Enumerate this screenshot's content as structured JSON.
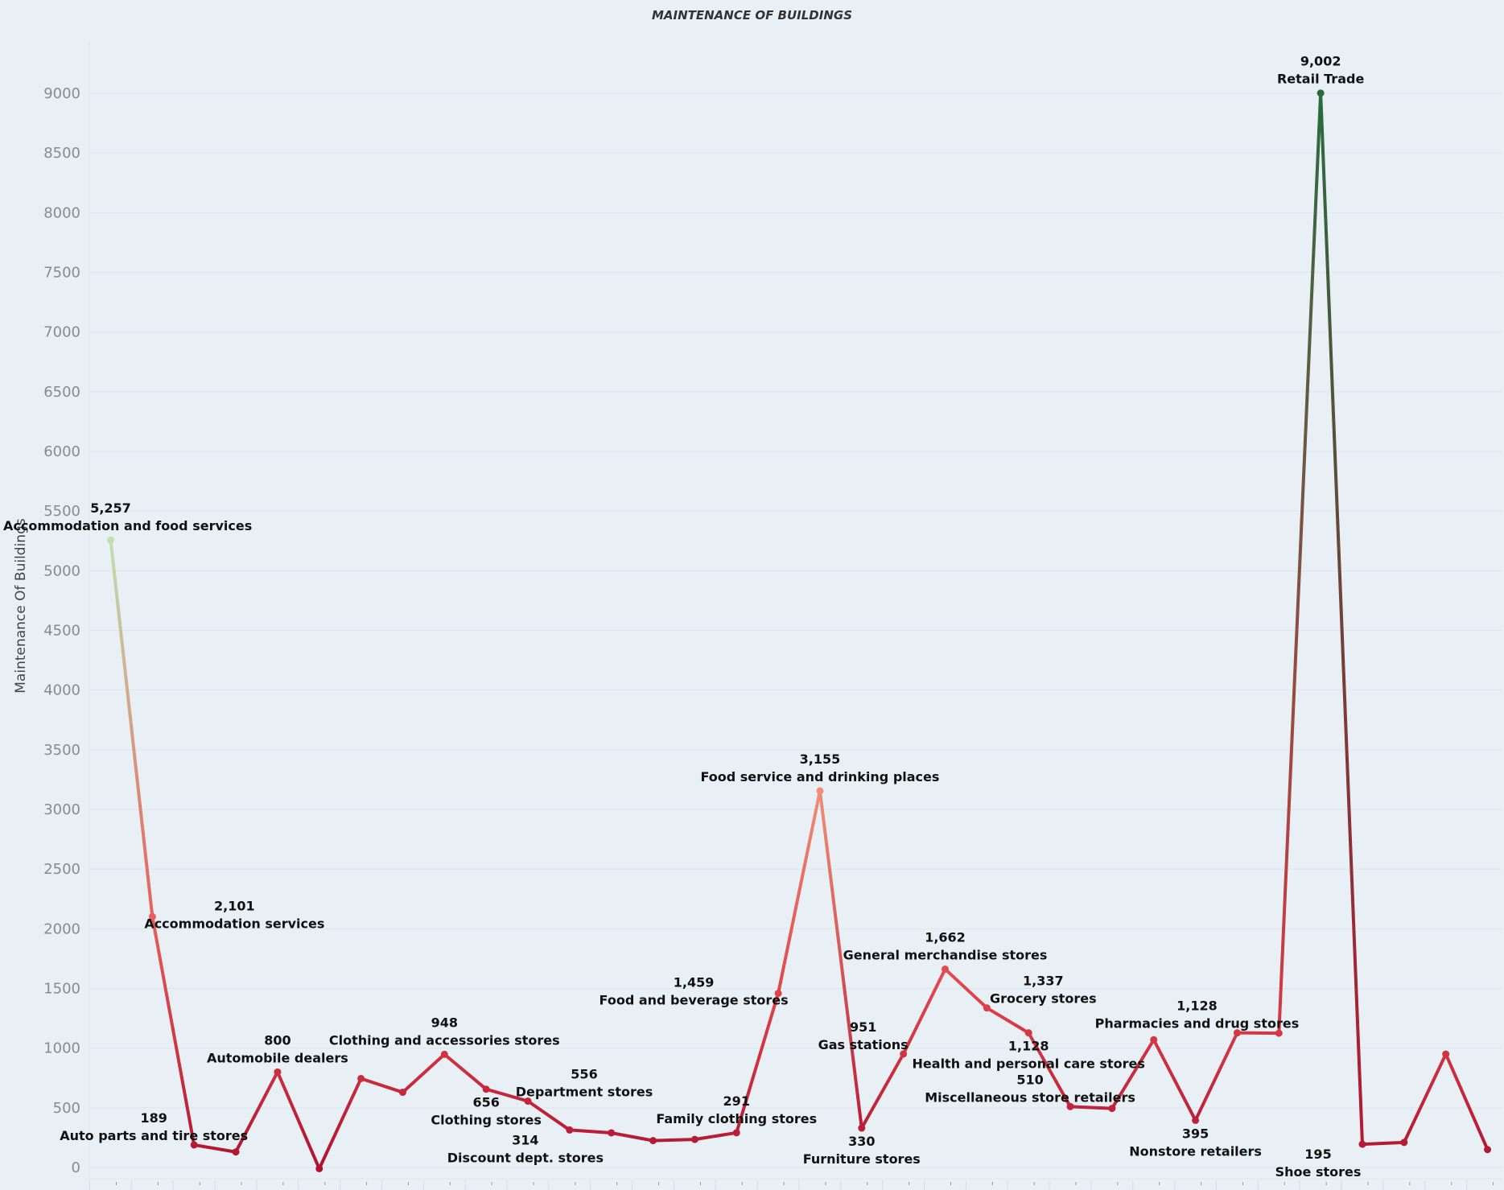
{
  "chart_data": {
    "type": "line",
    "title": "MAINTENANCE OF BUILDINGS",
    "xlabel": "",
    "ylabel": "Maintenance Of Buildings",
    "ylim": [
      0,
      9000
    ],
    "yticks": [
      0,
      500,
      1000,
      1500,
      2000,
      2500,
      3000,
      3500,
      4000,
      4500,
      5000,
      5500,
      6000,
      6500,
      7000,
      7500,
      8000,
      8500,
      9000
    ],
    "grid": true,
    "legend": "none",
    "color_scale": [
      "#b0132f",
      "#e5484e",
      "#f0907a",
      "#bfe0b0",
      "#2a6b3e"
    ],
    "points": [
      {
        "name": "Accommodation and food services",
        "value": 5257,
        "value_label": "5,257",
        "label": "above"
      },
      {
        "name": "Accommodation services",
        "value": 2101,
        "value_label": "2,101",
        "label": "right"
      },
      {
        "name": "Auto parts and tire stores",
        "value": 189,
        "value_label": "189",
        "label": "above-left"
      },
      {
        "name": "",
        "value": 130,
        "value_label": "",
        "label": "none"
      },
      {
        "name": "Automobile dealers",
        "value": 800,
        "value_label": "800",
        "label": "above"
      },
      {
        "name": "",
        "value": -10,
        "value_label": "",
        "label": "none"
      },
      {
        "name": "",
        "value": 745,
        "value_label": "",
        "label": "none"
      },
      {
        "name": "",
        "value": 630,
        "value_label": "",
        "label": "none"
      },
      {
        "name": "Clothing and accessories stores",
        "value": 948,
        "value_label": "948",
        "label": "above"
      },
      {
        "name": "Clothing stores",
        "value": 656,
        "value_label": "656",
        "label": "below"
      },
      {
        "name": "Department stores",
        "value": 556,
        "value_label": "556",
        "label": "above-right"
      },
      {
        "name": "Discount dept. stores",
        "value": 314,
        "value_label": "314",
        "label": "below-left"
      },
      {
        "name": "",
        "value": 290,
        "value_label": "",
        "label": "none"
      },
      {
        "name": "",
        "value": 225,
        "value_label": "",
        "label": "none"
      },
      {
        "name": "",
        "value": 235,
        "value_label": "",
        "label": "none"
      },
      {
        "name": "Family clothing stores",
        "value": 291,
        "value_label": "291",
        "label": "above"
      },
      {
        "name": "Food and beverage stores",
        "value": 1459,
        "value_label": "1,459",
        "label": "left"
      },
      {
        "name": "Food service and drinking places",
        "value": 3155,
        "value_label": "3,155",
        "label": "above"
      },
      {
        "name": "Furniture stores",
        "value": 330,
        "value_label": "330",
        "label": "below"
      },
      {
        "name": "Gas stations",
        "value": 951,
        "value_label": "951",
        "label": "above-left"
      },
      {
        "name": "General merchandise stores",
        "value": 1662,
        "value_label": "1,662",
        "label": "above"
      },
      {
        "name": "Grocery stores",
        "value": 1337,
        "value_label": "1,337",
        "label": "above-right"
      },
      {
        "name": "Health and personal care stores",
        "value": 1128,
        "value_label": "1,128",
        "label": "below"
      },
      {
        "name": "Miscellaneous store retailers",
        "value": 510,
        "value_label": "510",
        "label": "above-left"
      },
      {
        "name": "",
        "value": 495,
        "value_label": "",
        "label": "none"
      },
      {
        "name": "",
        "value": 1070,
        "value_label": "",
        "label": "none"
      },
      {
        "name": "Nonstore retailers",
        "value": 395,
        "value_label": "395",
        "label": "below"
      },
      {
        "name": "Pharmacies and drug stores",
        "value": 1128,
        "value_label": "1,128",
        "label": "above-left"
      },
      {
        "name": "",
        "value": 1125,
        "value_label": "",
        "label": "none"
      },
      {
        "name": "Retail Trade",
        "value": 9002,
        "value_label": "9,002",
        "label": "above"
      },
      {
        "name": "Shoe stores",
        "value": 195,
        "value_label": "195",
        "label": "below-left"
      },
      {
        "name": "",
        "value": 210,
        "value_label": "",
        "label": "none"
      },
      {
        "name": "",
        "value": 950,
        "value_label": "",
        "label": "none"
      },
      {
        "name": "",
        "value": 150,
        "value_label": "",
        "label": "none"
      }
    ]
  }
}
